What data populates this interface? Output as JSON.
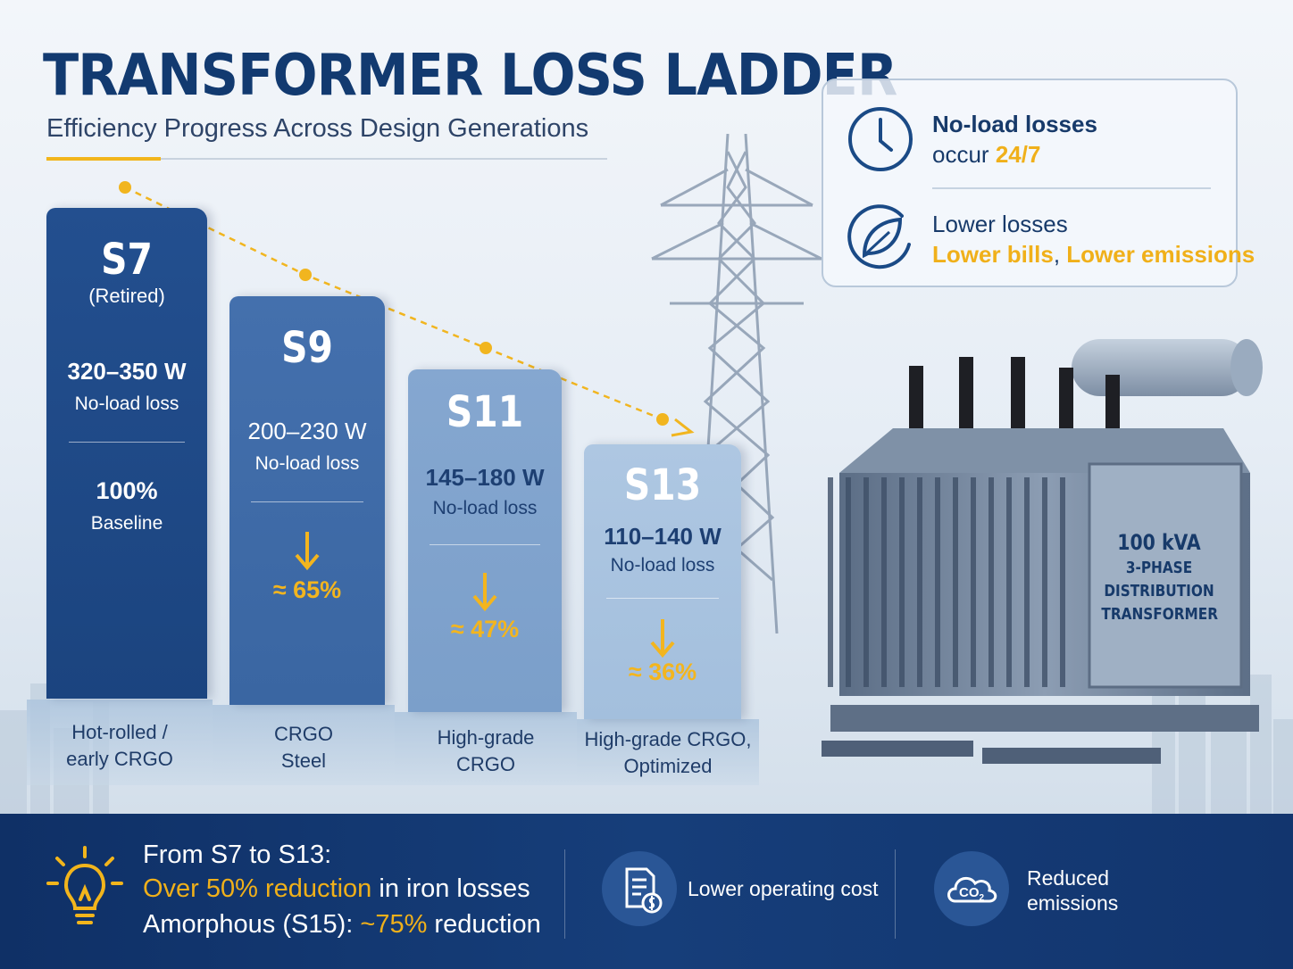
{
  "header": {
    "title": "TRANSFORMER LOSS LADDER",
    "subtitle": "Efficiency Progress Across Design Generations"
  },
  "info_card": {
    "row1_bold": "No-load losses",
    "row1_text": "occur ",
    "row1_highlight": "24/7",
    "row2_text": "Lower losses",
    "row2_highlight1": "Lower bills",
    "row2_sep": ", ",
    "row2_highlight2": "Lower emissions",
    "icons": [
      "clock-icon",
      "leaf-icon"
    ]
  },
  "ladder": [
    {
      "name": "S7",
      "status": "(Retired)",
      "watts": "320–350 W",
      "watts_label": "No-load loss",
      "pct": "100%",
      "pct_label": "Baseline",
      "material": [
        "Hot-rolled /",
        "early CRGO"
      ]
    },
    {
      "name": "S9",
      "watts": "200–230 W",
      "watts_label": "No-load loss",
      "pct": "≈ 65%",
      "material": [
        "CRGO",
        "Steel"
      ]
    },
    {
      "name": "S11",
      "watts": "145–180 W",
      "watts_label": "No-load loss",
      "pct": "≈ 47%",
      "material": [
        "High-grade",
        "CRGO"
      ]
    },
    {
      "name": "S13",
      "watts": "110–140 W",
      "watts_label": "No-load loss",
      "pct": "≈ 36%",
      "material": [
        "High-grade CRGO,",
        "Optimized"
      ]
    }
  ],
  "transformer": {
    "plate_line1": "100 kVA",
    "plate_line2": "3-PHASE",
    "plate_line3": "DISTRIBUTION",
    "plate_line4": "TRANSFORMER"
  },
  "bottom": {
    "line1": "From S7 to S13:",
    "line2_highlight": "Over 50% reduction",
    "line2_rest": " in iron losses",
    "line3_pre": "Amorphous (S15): ",
    "line3_highlight": "~75%",
    "line3_rest": " reduction",
    "cost_label": "Lower operating cost",
    "emissions_label_1": "Reduced",
    "emissions_label_2": "emissions",
    "co2_text": "CO",
    "co2_sub": "2"
  },
  "colors": {
    "navy": "#123a70",
    "gold": "#f0b01a",
    "bar_s7": "#1e4a88",
    "bar_s9": "#3f6aa6",
    "bar_s11": "#7ea1cc",
    "bar_s13": "#a9c3df"
  }
}
